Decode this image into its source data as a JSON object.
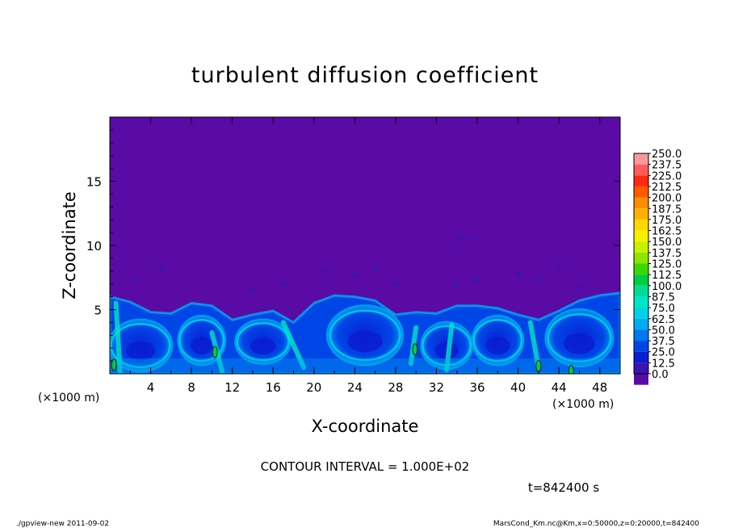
{
  "chart_data": {
    "type": "heatmap",
    "title": "turbulent diffusion coefficient",
    "xlabel": "X-coordinate",
    "ylabel": "Z-coordinate",
    "x_unit": "(×1000 m)",
    "y_unit": "(×1000 m)",
    "xlim": [
      0,
      50
    ],
    "ylim": [
      0,
      20
    ],
    "xticks": [
      4,
      8,
      12,
      16,
      20,
      24,
      28,
      32,
      36,
      40,
      44,
      48
    ],
    "yticks": [
      5,
      10,
      15
    ],
    "colorbar": {
      "min": 0,
      "max": 250,
      "levels": [
        "250.0",
        "237.5",
        "225.0",
        "212.5",
        "200.0",
        "187.5",
        "175.0",
        "162.5",
        "150.0",
        "137.5",
        "125.0",
        "112.5",
        "100.0",
        "87.5",
        "75.0",
        "62.5",
        "50.0",
        "37.5",
        "25.0",
        "12.5",
        "0.0"
      ],
      "colors": [
        "#f89a9a",
        "#ff5c5c",
        "#ff2a10",
        "#ff5a00",
        "#ff8c00",
        "#ffb000",
        "#ffd800",
        "#f5f000",
        "#c8f000",
        "#8ce600",
        "#3cd800",
        "#00cc44",
        "#00dc96",
        "#00e6c8",
        "#00d2e6",
        "#00aaf0",
        "#0078f0",
        "#0046e6",
        "#0a1ed2",
        "#3a14b4",
        "#5a0aa5"
      ]
    },
    "field_description": "Background near 0 (purple) above ~6 km; turbulent layer below ~6 km with values mostly 12.5–75 (blue–cyan), isolated spots >100 (green) near the surface at x≈1, 10, 30, 42, 45",
    "surface_layer_top_km": [
      [
        0,
        6.0
      ],
      [
        2,
        5.6
      ],
      [
        4,
        4.8
      ],
      [
        6,
        4.7
      ],
      [
        8,
        5.5
      ],
      [
        10,
        5.3
      ],
      [
        12,
        4.2
      ],
      [
        14,
        4.6
      ],
      [
        16,
        4.9
      ],
      [
        18,
        4.0
      ],
      [
        20,
        5.5
      ],
      [
        22,
        6.1
      ],
      [
        24,
        6.0
      ],
      [
        26,
        5.7
      ],
      [
        28,
        4.6
      ],
      [
        30,
        4.8
      ],
      [
        32,
        4.7
      ],
      [
        34,
        5.3
      ],
      [
        36,
        5.3
      ],
      [
        38,
        5.1
      ],
      [
        40,
        4.6
      ],
      [
        42,
        4.2
      ],
      [
        44,
        4.9
      ],
      [
        46,
        5.7
      ],
      [
        48,
        6.1
      ],
      [
        50,
        6.3
      ]
    ],
    "contour_interval": "CONTOUR INTERVAL = 1.000E+02",
    "time": "t=842400 s"
  },
  "footer": {
    "left": "./gpview-new  2011-09-02",
    "right": "MarsCond_Km.nc@Km,x=0:50000,z=0:20000,t=842400"
  }
}
